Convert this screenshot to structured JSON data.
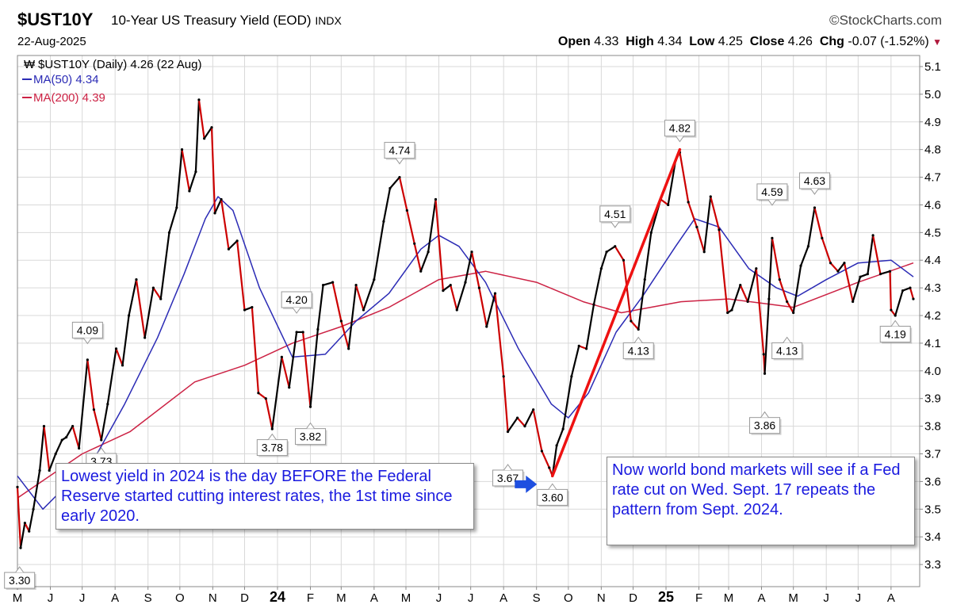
{
  "header": {
    "ticker": "$UST10Y",
    "title": "10-Year US Treasury Yield (EOD)",
    "exchange": "INDX",
    "brand": "StockCharts.com",
    "date": "22-Aug-2025",
    "open_label": "Open",
    "open": "4.33",
    "high_label": "High",
    "high": "4.34",
    "low_label": "Low",
    "low": "4.25",
    "close_label": "Close",
    "close": "4.26",
    "chg_label": "Chg",
    "chg": "-0.07 (-1.52%)"
  },
  "legend": {
    "main": "$UST10Y (Daily) 4.26 (22 Aug)",
    "ma50": "MA(50) 4.34",
    "ma200": "MA(200) 4.39"
  },
  "colors": {
    "price": "#000000",
    "price_down": "#cc0000",
    "ma50": "#2b2bb5",
    "ma200": "#cc2244",
    "trend": "#ee1111",
    "arrow": "#1e4fe0",
    "note_text": "#1a1adf"
  },
  "notes": {
    "left": "Lowest yield in 2024 is the day BEFORE the Federal Reserve started cutting interest rates, the 1st time since early 2020.",
    "right": "Now world bond markets will see if a Fed rate cut on Wed. Sept. 17 repeats the pattern from Sept. 2024."
  },
  "chart_data": {
    "type": "line",
    "ylim": [
      3.22,
      5.14
    ],
    "y_scale": "right axis",
    "y_ticks": [
      "3.3",
      "3.4",
      "3.5",
      "3.6",
      "3.7",
      "3.8",
      "3.9",
      "4.0",
      "4.1",
      "4.2",
      "4.3",
      "4.4",
      "4.5",
      "4.6",
      "4.7",
      "4.8",
      "4.9",
      "5.0",
      "5.1"
    ],
    "x_range": [
      "2023-05-01",
      "2025-08-28"
    ],
    "x_ticks": [
      {
        "date": "2023-05-01",
        "label": "M"
      },
      {
        "date": "2023-06-01",
        "label": "J"
      },
      {
        "date": "2023-07-01",
        "label": "J"
      },
      {
        "date": "2023-08-01",
        "label": "A"
      },
      {
        "date": "2023-09-01",
        "label": "S"
      },
      {
        "date": "2023-10-01",
        "label": "O"
      },
      {
        "date": "2023-11-01",
        "label": "N"
      },
      {
        "date": "2023-12-01",
        "label": "D"
      },
      {
        "date": "2024-01-01",
        "label": "24"
      },
      {
        "date": "2024-02-01",
        "label": "F"
      },
      {
        "date": "2024-03-01",
        "label": "M"
      },
      {
        "date": "2024-04-01",
        "label": "A"
      },
      {
        "date": "2024-05-01",
        "label": "M"
      },
      {
        "date": "2024-06-01",
        "label": "J"
      },
      {
        "date": "2024-07-01",
        "label": "J"
      },
      {
        "date": "2024-08-01",
        "label": "A"
      },
      {
        "date": "2024-09-01",
        "label": "S"
      },
      {
        "date": "2024-10-01",
        "label": "O"
      },
      {
        "date": "2024-11-01",
        "label": "N"
      },
      {
        "date": "2024-12-01",
        "label": "D"
      },
      {
        "date": "2025-01-01",
        "label": "25"
      },
      {
        "date": "2025-02-01",
        "label": "F"
      },
      {
        "date": "2025-03-01",
        "label": "M"
      },
      {
        "date": "2025-04-01",
        "label": "A"
      },
      {
        "date": "2025-05-01",
        "label": "M"
      },
      {
        "date": "2025-06-01",
        "label": "J"
      },
      {
        "date": "2025-07-01",
        "label": "J"
      },
      {
        "date": "2025-08-01",
        "label": "A"
      }
    ],
    "series": [
      {
        "name": "$UST10Y",
        "values": [
          [
            "2023-05-01",
            3.58
          ],
          [
            "2023-05-04",
            3.36
          ],
          [
            "2023-05-08",
            3.45
          ],
          [
            "2023-05-12",
            3.42
          ],
          [
            "2023-05-16",
            3.5
          ],
          [
            "2023-05-22",
            3.64
          ],
          [
            "2023-05-26",
            3.8
          ],
          [
            "2023-05-31",
            3.64
          ],
          [
            "2023-06-06",
            3.7
          ],
          [
            "2023-06-12",
            3.75
          ],
          [
            "2023-06-16",
            3.76
          ],
          [
            "2023-06-22",
            3.8
          ],
          [
            "2023-06-28",
            3.72
          ],
          [
            "2023-07-06",
            4.04
          ],
          [
            "2023-07-12",
            3.86
          ],
          [
            "2023-07-19",
            3.75
          ],
          [
            "2023-07-25",
            3.88
          ],
          [
            "2023-08-02",
            4.08
          ],
          [
            "2023-08-08",
            4.02
          ],
          [
            "2023-08-14",
            4.2
          ],
          [
            "2023-08-21",
            4.33
          ],
          [
            "2023-08-29",
            4.12
          ],
          [
            "2023-09-06",
            4.3
          ],
          [
            "2023-09-13",
            4.26
          ],
          [
            "2023-09-21",
            4.5
          ],
          [
            "2023-09-28",
            4.59
          ],
          [
            "2023-10-03",
            4.8
          ],
          [
            "2023-10-10",
            4.65
          ],
          [
            "2023-10-16",
            4.72
          ],
          [
            "2023-10-19",
            4.98
          ],
          [
            "2023-10-24",
            4.84
          ],
          [
            "2023-10-31",
            4.88
          ],
          [
            "2023-11-03",
            4.57
          ],
          [
            "2023-11-09",
            4.62
          ],
          [
            "2023-11-16",
            4.44
          ],
          [
            "2023-11-24",
            4.47
          ],
          [
            "2023-12-01",
            4.22
          ],
          [
            "2023-12-08",
            4.23
          ],
          [
            "2023-12-14",
            3.92
          ],
          [
            "2023-12-21",
            3.9
          ],
          [
            "2023-12-27",
            3.79
          ],
          [
            "2024-01-05",
            4.05
          ],
          [
            "2024-01-12",
            3.94
          ],
          [
            "2024-01-19",
            4.14
          ],
          [
            "2024-01-25",
            4.14
          ],
          [
            "2024-02-01",
            3.87
          ],
          [
            "2024-02-08",
            4.15
          ],
          [
            "2024-02-13",
            4.31
          ],
          [
            "2024-02-22",
            4.32
          ],
          [
            "2024-03-01",
            4.18
          ],
          [
            "2024-03-08",
            4.08
          ],
          [
            "2024-03-15",
            4.31
          ],
          [
            "2024-03-22",
            4.22
          ],
          [
            "2024-04-01",
            4.33
          ],
          [
            "2024-04-10",
            4.54
          ],
          [
            "2024-04-16",
            4.66
          ],
          [
            "2024-04-25",
            4.7
          ],
          [
            "2024-05-02",
            4.58
          ],
          [
            "2024-05-09",
            4.46
          ],
          [
            "2024-05-15",
            4.36
          ],
          [
            "2024-05-22",
            4.43
          ],
          [
            "2024-05-29",
            4.62
          ],
          [
            "2024-06-05",
            4.29
          ],
          [
            "2024-06-12",
            4.31
          ],
          [
            "2024-06-18",
            4.22
          ],
          [
            "2024-06-26",
            4.32
          ],
          [
            "2024-07-02",
            4.43
          ],
          [
            "2024-07-09",
            4.3
          ],
          [
            "2024-07-16",
            4.16
          ],
          [
            "2024-07-24",
            4.28
          ],
          [
            "2024-08-01",
            3.98
          ],
          [
            "2024-08-05",
            3.78
          ],
          [
            "2024-08-14",
            3.83
          ],
          [
            "2024-08-21",
            3.8
          ],
          [
            "2024-08-29",
            3.86
          ],
          [
            "2024-09-06",
            3.71
          ],
          [
            "2024-09-13",
            3.65
          ],
          [
            "2024-09-16",
            3.62
          ],
          [
            "2024-09-20",
            3.73
          ],
          [
            "2024-09-26",
            3.79
          ],
          [
            "2024-10-04",
            3.98
          ],
          [
            "2024-10-11",
            4.09
          ],
          [
            "2024-10-18",
            4.08
          ],
          [
            "2024-10-25",
            4.24
          ],
          [
            "2024-11-01",
            4.37
          ],
          [
            "2024-11-06",
            4.43
          ],
          [
            "2024-11-14",
            4.45
          ],
          [
            "2024-11-22",
            4.4
          ],
          [
            "2024-11-29",
            4.18
          ],
          [
            "2024-12-06",
            4.15
          ],
          [
            "2024-12-12",
            4.33
          ],
          [
            "2024-12-18",
            4.5
          ],
          [
            "2024-12-27",
            4.62
          ],
          [
            "2025-01-03",
            4.6
          ],
          [
            "2025-01-10",
            4.76
          ],
          [
            "2025-01-14",
            4.79
          ],
          [
            "2025-01-22",
            4.61
          ],
          [
            "2025-01-30",
            4.52
          ],
          [
            "2025-02-06",
            4.43
          ],
          [
            "2025-02-12",
            4.63
          ],
          [
            "2025-02-20",
            4.51
          ],
          [
            "2025-02-28",
            4.21
          ],
          [
            "2025-03-04",
            4.22
          ],
          [
            "2025-03-12",
            4.31
          ],
          [
            "2025-03-19",
            4.25
          ],
          [
            "2025-03-27",
            4.37
          ],
          [
            "2025-04-03",
            4.06
          ],
          [
            "2025-04-04",
            3.99
          ],
          [
            "2025-04-08",
            4.26
          ],
          [
            "2025-04-11",
            4.48
          ],
          [
            "2025-04-18",
            4.33
          ],
          [
            "2025-04-25",
            4.25
          ],
          [
            "2025-05-01",
            4.21
          ],
          [
            "2025-05-08",
            4.38
          ],
          [
            "2025-05-15",
            4.45
          ],
          [
            "2025-05-21",
            4.59
          ],
          [
            "2025-05-28",
            4.48
          ],
          [
            "2025-06-05",
            4.39
          ],
          [
            "2025-06-12",
            4.36
          ],
          [
            "2025-06-18",
            4.39
          ],
          [
            "2025-06-26",
            4.25
          ],
          [
            "2025-07-03",
            4.34
          ],
          [
            "2025-07-10",
            4.35
          ],
          [
            "2025-07-15",
            4.49
          ],
          [
            "2025-07-22",
            4.35
          ],
          [
            "2025-07-31",
            4.36
          ],
          [
            "2025-08-01",
            4.22
          ],
          [
            "2025-08-05",
            4.2
          ],
          [
            "2025-08-12",
            4.29
          ],
          [
            "2025-08-19",
            4.3
          ],
          [
            "2025-08-22",
            4.26
          ]
        ]
      },
      {
        "name": "MA(50)",
        "values": [
          [
            "2023-05-01",
            3.62
          ],
          [
            "2023-05-25",
            3.5
          ],
          [
            "2023-06-20",
            3.6
          ],
          [
            "2023-07-15",
            3.7
          ],
          [
            "2023-08-10",
            3.88
          ],
          [
            "2023-09-10",
            4.12
          ],
          [
            "2023-10-05",
            4.35
          ],
          [
            "2023-10-25",
            4.55
          ],
          [
            "2023-11-06",
            4.63
          ],
          [
            "2023-11-20",
            4.58
          ],
          [
            "2023-12-15",
            4.3
          ],
          [
            "2024-01-15",
            4.05
          ],
          [
            "2024-02-15",
            4.06
          ],
          [
            "2024-03-15",
            4.18
          ],
          [
            "2024-04-15",
            4.28
          ],
          [
            "2024-05-15",
            4.44
          ],
          [
            "2024-06-01",
            4.49
          ],
          [
            "2024-06-20",
            4.45
          ],
          [
            "2024-07-15",
            4.32
          ],
          [
            "2024-08-15",
            4.08
          ],
          [
            "2024-09-15",
            3.88
          ],
          [
            "2024-10-01",
            3.83
          ],
          [
            "2024-10-20",
            3.92
          ],
          [
            "2024-11-15",
            4.14
          ],
          [
            "2024-12-10",
            4.27
          ],
          [
            "2025-01-10",
            4.45
          ],
          [
            "2025-01-28",
            4.55
          ],
          [
            "2025-02-20",
            4.52
          ],
          [
            "2025-03-20",
            4.37
          ],
          [
            "2025-04-15",
            4.3
          ],
          [
            "2025-05-05",
            4.27
          ],
          [
            "2025-06-01",
            4.33
          ],
          [
            "2025-07-01",
            4.39
          ],
          [
            "2025-08-01",
            4.4
          ],
          [
            "2025-08-22",
            4.34
          ]
        ]
      },
      {
        "name": "MA(200)",
        "values": [
          [
            "2023-05-01",
            3.54
          ],
          [
            "2023-07-01",
            3.7
          ],
          [
            "2023-08-15",
            3.78
          ],
          [
            "2023-10-15",
            3.96
          ],
          [
            "2023-12-01",
            4.02
          ],
          [
            "2024-01-15",
            4.1
          ],
          [
            "2024-03-01",
            4.16
          ],
          [
            "2024-04-15",
            4.23
          ],
          [
            "2024-06-01",
            4.33
          ],
          [
            "2024-07-15",
            4.36
          ],
          [
            "2024-09-01",
            4.32
          ],
          [
            "2024-10-15",
            4.25
          ],
          [
            "2024-11-20",
            4.21
          ],
          [
            "2025-01-15",
            4.25
          ],
          [
            "2025-03-01",
            4.26
          ],
          [
            "2025-05-01",
            4.23
          ],
          [
            "2025-07-01",
            4.32
          ],
          [
            "2025-08-22",
            4.39
          ]
        ]
      }
    ],
    "annotations": [
      {
        "date": "2023-05-03",
        "value": 3.3,
        "label": "3.30",
        "pos": "below"
      },
      {
        "date": "2023-07-06",
        "value": 4.09,
        "label": "4.09",
        "pos": "above"
      },
      {
        "date": "2023-07-19",
        "value": 3.73,
        "label": "3.73",
        "pos": "below"
      },
      {
        "date": "2023-12-27",
        "value": 3.78,
        "label": "3.78",
        "pos": "below"
      },
      {
        "date": "2024-01-19",
        "value": 4.2,
        "label": "4.20",
        "pos": "above"
      },
      {
        "date": "2024-02-01",
        "value": 3.82,
        "label": "3.82",
        "pos": "below"
      },
      {
        "date": "2024-04-25",
        "value": 4.74,
        "label": "4.74",
        "pos": "above"
      },
      {
        "date": "2024-08-05",
        "value": 3.67,
        "label": "3.67",
        "pos": "below"
      },
      {
        "date": "2024-09-16",
        "value": 3.6,
        "label": "3.60",
        "pos": "below"
      },
      {
        "date": "2024-11-14",
        "value": 4.51,
        "label": "4.51",
        "pos": "above"
      },
      {
        "date": "2024-12-06",
        "value": 4.13,
        "label": "4.13",
        "pos": "below"
      },
      {
        "date": "2025-01-14",
        "value": 4.82,
        "label": "4.82",
        "pos": "above"
      },
      {
        "date": "2025-04-04",
        "value": 3.86,
        "label": "3.86",
        "pos": "below"
      },
      {
        "date": "2025-04-11",
        "value": 4.59,
        "label": "4.59",
        "pos": "above"
      },
      {
        "date": "2025-04-25",
        "value": 4.13,
        "label": "4.13",
        "pos": "below"
      },
      {
        "date": "2025-05-21",
        "value": 4.63,
        "label": "4.63",
        "pos": "above"
      },
      {
        "date": "2025-08-05",
        "value": 4.19,
        "label": "4.19",
        "pos": "below"
      }
    ],
    "trendline": {
      "from": [
        "2024-09-16",
        3.62
      ],
      "to": [
        "2025-01-14",
        4.8
      ]
    },
    "arrow": {
      "date": "2024-08-22",
      "value": 3.59,
      "direction": "right"
    },
    "grid": true,
    "legend_position": "top-left"
  }
}
